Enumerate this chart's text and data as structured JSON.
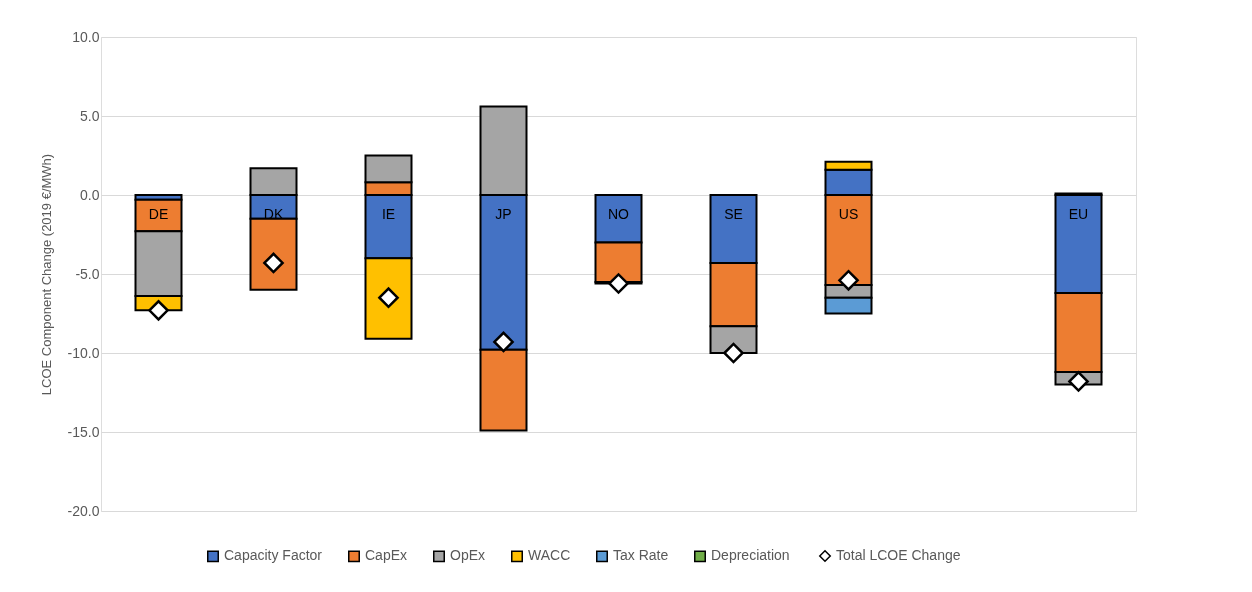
{
  "chart_data": {
    "type": "bar",
    "stacked": true,
    "ylabel": "LCOE Component Change (2019 €/MWh)",
    "categories": [
      "DE",
      "DK",
      "IE",
      "JP",
      "NO",
      "SE",
      "US",
      null,
      "EU"
    ],
    "ylim": [
      -20,
      10
    ],
    "yticks": [
      {
        "value": -20,
        "label": "-20.0"
      },
      {
        "value": -15,
        "label": "-15.0"
      },
      {
        "value": -10,
        "label": "-10.0"
      },
      {
        "value": -5,
        "label": "-5.0"
      },
      {
        "value": 0,
        "label": "0.0"
      },
      {
        "value": 5,
        "label": "5.0"
      },
      {
        "value": 10,
        "label": "10.0"
      }
    ],
    "grid": "y",
    "legend": "bottom",
    "series": [
      {
        "name": "Capacity Factor",
        "color": "#4472c4",
        "values": [
          -0.3,
          -1.5,
          -4.0,
          -9.8,
          -3.0,
          -4.3,
          1.6,
          null,
          -6.2
        ]
      },
      {
        "name": "CapEx",
        "color": "#ed7d31",
        "values": [
          -2.0,
          -4.5,
          0.8,
          -5.1,
          -2.5,
          -4.0,
          -5.7,
          null,
          -5.0
        ]
      },
      {
        "name": "OpEx",
        "color": "#a5a5a5",
        "values": [
          -4.1,
          1.7,
          1.7,
          5.6,
          -0.1,
          -1.7,
          -0.8,
          null,
          -0.8
        ]
      },
      {
        "name": "WACC",
        "color": "#ffc000",
        "values": [
          -0.9,
          null,
          -5.1,
          null,
          null,
          null,
          0.5,
          null,
          0.1
        ]
      },
      {
        "name": "Tax Rate",
        "color": "#5b9bd5",
        "values": [
          null,
          null,
          null,
          null,
          null,
          null,
          -1.0,
          null,
          null
        ]
      },
      {
        "name": "Depreciation",
        "color": "#70ad47",
        "values": [
          null,
          null,
          null,
          null,
          null,
          null,
          null,
          null,
          null
        ]
      },
      {
        "name": "Total LCOE Change",
        "type": "scatter",
        "marker": "diamond",
        "color": "#ffffff",
        "values": [
          -7.3,
          -4.3,
          -6.5,
          -9.3,
          -5.6,
          -10.0,
          -5.4,
          null,
          -11.8
        ]
      }
    ]
  }
}
